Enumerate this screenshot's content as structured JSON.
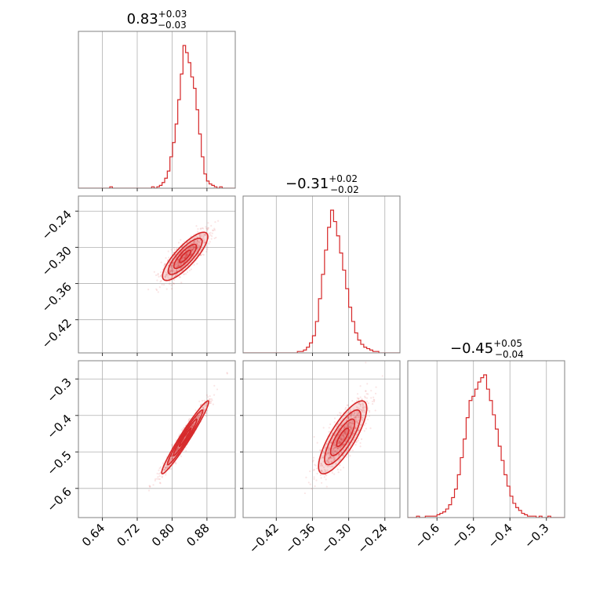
{
  "colors": {
    "accent": "#d62728",
    "grid": "#b0b0b0",
    "frame": "#808080"
  },
  "titles": [
    {
      "value": "0.83",
      "plus": "+0.03",
      "minus": "−0.03"
    },
    {
      "value": "−0.31",
      "plus": "+0.02",
      "minus": "−0.02"
    },
    {
      "value": "−0.45",
      "plus": "+0.05",
      "minus": "−0.04"
    }
  ],
  "chart_data": {
    "type": "corner",
    "parameters": [
      {
        "index": 0,
        "median": 0.83,
        "err_plus": 0.03,
        "err_minus": 0.03,
        "range": [
          0.585,
          0.945
        ],
        "ticks": [
          0.64,
          0.72,
          0.8,
          0.88
        ],
        "tick_labels": [
          "0.64",
          "0.72",
          "0.80",
          "0.88"
        ]
      },
      {
        "index": 1,
        "median": -0.31,
        "err_plus": 0.02,
        "err_minus": 0.02,
        "range": [
          -0.475,
          -0.215
        ],
        "ticks": [
          -0.42,
          -0.36,
          -0.3,
          -0.24
        ],
        "tick_labels": [
          "−0.42",
          "−0.36",
          "−0.30",
          "−0.24"
        ]
      },
      {
        "index": 2,
        "median": -0.45,
        "err_plus": 0.05,
        "err_minus": 0.04,
        "range": [
          -0.68,
          -0.25
        ],
        "ticks": [
          -0.6,
          -0.5,
          -0.4,
          -0.3
        ],
        "tick_labels": [
          "−0.6",
          "−0.5",
          "−0.4",
          "−0.3"
        ]
      }
    ],
    "histograms": [
      {
        "param": 0,
        "bins": [
          0.585,
          0.591,
          0.597,
          0.603,
          0.609,
          0.615,
          0.621,
          0.627,
          0.633,
          0.639,
          0.645,
          0.651,
          0.657,
          0.663,
          0.669,
          0.675,
          0.681,
          0.687,
          0.693,
          0.699,
          0.705,
          0.711,
          0.717,
          0.723,
          0.729,
          0.735,
          0.741,
          0.747,
          0.753,
          0.759,
          0.765,
          0.771,
          0.777,
          0.783,
          0.789,
          0.795,
          0.801,
          0.807,
          0.813,
          0.819,
          0.825,
          0.831,
          0.837,
          0.843,
          0.849,
          0.855,
          0.861,
          0.867,
          0.873,
          0.879,
          0.885,
          0.891,
          0.897,
          0.903,
          0.909,
          0.915,
          0.921,
          0.927,
          0.933,
          0.939,
          0.945
        ],
        "counts": [
          0,
          0,
          0,
          0,
          0,
          0,
          0,
          0,
          0,
          0,
          0,
          0,
          1,
          0,
          0,
          0,
          0,
          0,
          0,
          0,
          0,
          0,
          0,
          0,
          0,
          0,
          0,
          0,
          1,
          0,
          1,
          2,
          4,
          7,
          12,
          22,
          32,
          45,
          62,
          80,
          100,
          95,
          88,
          78,
          70,
          55,
          38,
          22,
          10,
          5,
          3,
          2,
          1,
          0,
          1,
          0,
          0,
          0,
          0,
          0
        ]
      },
      {
        "param": 1,
        "bins": [
          -0.475,
          -0.47,
          -0.465,
          -0.46,
          -0.455,
          -0.45,
          -0.445,
          -0.44,
          -0.435,
          -0.43,
          -0.425,
          -0.42,
          -0.415,
          -0.41,
          -0.405,
          -0.4,
          -0.395,
          -0.39,
          -0.385,
          -0.38,
          -0.375,
          -0.37,
          -0.365,
          -0.36,
          -0.355,
          -0.35,
          -0.345,
          -0.34,
          -0.335,
          -0.33,
          -0.325,
          -0.32,
          -0.315,
          -0.31,
          -0.305,
          -0.3,
          -0.295,
          -0.29,
          -0.285,
          -0.28,
          -0.275,
          -0.27,
          -0.265,
          -0.26,
          -0.255,
          -0.25,
          -0.245,
          -0.24,
          -0.235,
          -0.23,
          -0.225,
          -0.22,
          -0.215
        ],
        "counts": [
          0,
          0,
          0,
          0,
          0,
          0,
          0,
          0,
          0,
          0,
          0,
          0,
          0,
          0,
          0,
          0,
          0,
          0,
          1,
          1,
          2,
          4,
          7,
          12,
          22,
          38,
          55,
          72,
          88,
          100,
          92,
          82,
          70,
          58,
          45,
          32,
          22,
          14,
          9,
          6,
          4,
          3,
          2,
          1,
          1,
          0,
          0,
          0,
          0,
          0,
          0,
          0
        ]
      },
      {
        "param": 2,
        "bins": [
          -0.68,
          -0.672,
          -0.664,
          -0.656,
          -0.648,
          -0.64,
          -0.632,
          -0.624,
          -0.616,
          -0.608,
          -0.6,
          -0.592,
          -0.584,
          -0.576,
          -0.568,
          -0.56,
          -0.552,
          -0.544,
          -0.536,
          -0.528,
          -0.52,
          -0.512,
          -0.504,
          -0.496,
          -0.488,
          -0.48,
          -0.472,
          -0.464,
          -0.456,
          -0.448,
          -0.44,
          -0.432,
          -0.424,
          -0.416,
          -0.408,
          -0.4,
          -0.392,
          -0.384,
          -0.376,
          -0.368,
          -0.36,
          -0.352,
          -0.344,
          -0.336,
          -0.328,
          -0.32,
          -0.312,
          -0.304,
          -0.296,
          -0.288,
          -0.28,
          -0.272,
          -0.264,
          -0.256,
          -0.25
        ],
        "counts": [
          0,
          0,
          0,
          1,
          0,
          0,
          1,
          1,
          1,
          1,
          2,
          3,
          4,
          6,
          9,
          14,
          20,
          30,
          42,
          55,
          70,
          82,
          85,
          90,
          95,
          98,
          100,
          90,
          82,
          72,
          62,
          50,
          40,
          30,
          22,
          15,
          10,
          7,
          5,
          3,
          2,
          1,
          1,
          1,
          0,
          1,
          0,
          0,
          1,
          0,
          0,
          0,
          0,
          0
        ]
      }
    ],
    "scatter_panels": [
      {
        "x_param": 0,
        "y_param": 1,
        "x_center": 0.83,
        "y_center": -0.315,
        "sx": 0.026,
        "sy": 0.02,
        "rho": 0.82
      },
      {
        "x_param": 0,
        "y_param": 2,
        "x_center": 0.83,
        "y_center": -0.46,
        "sx": 0.027,
        "sy": 0.05,
        "rho": 0.97
      },
      {
        "x_param": 1,
        "y_param": 2,
        "x_center": -0.31,
        "y_center": -0.46,
        "sx": 0.02,
        "sy": 0.05,
        "rho": 0.8
      }
    ],
    "grid": true,
    "legend": "none"
  }
}
